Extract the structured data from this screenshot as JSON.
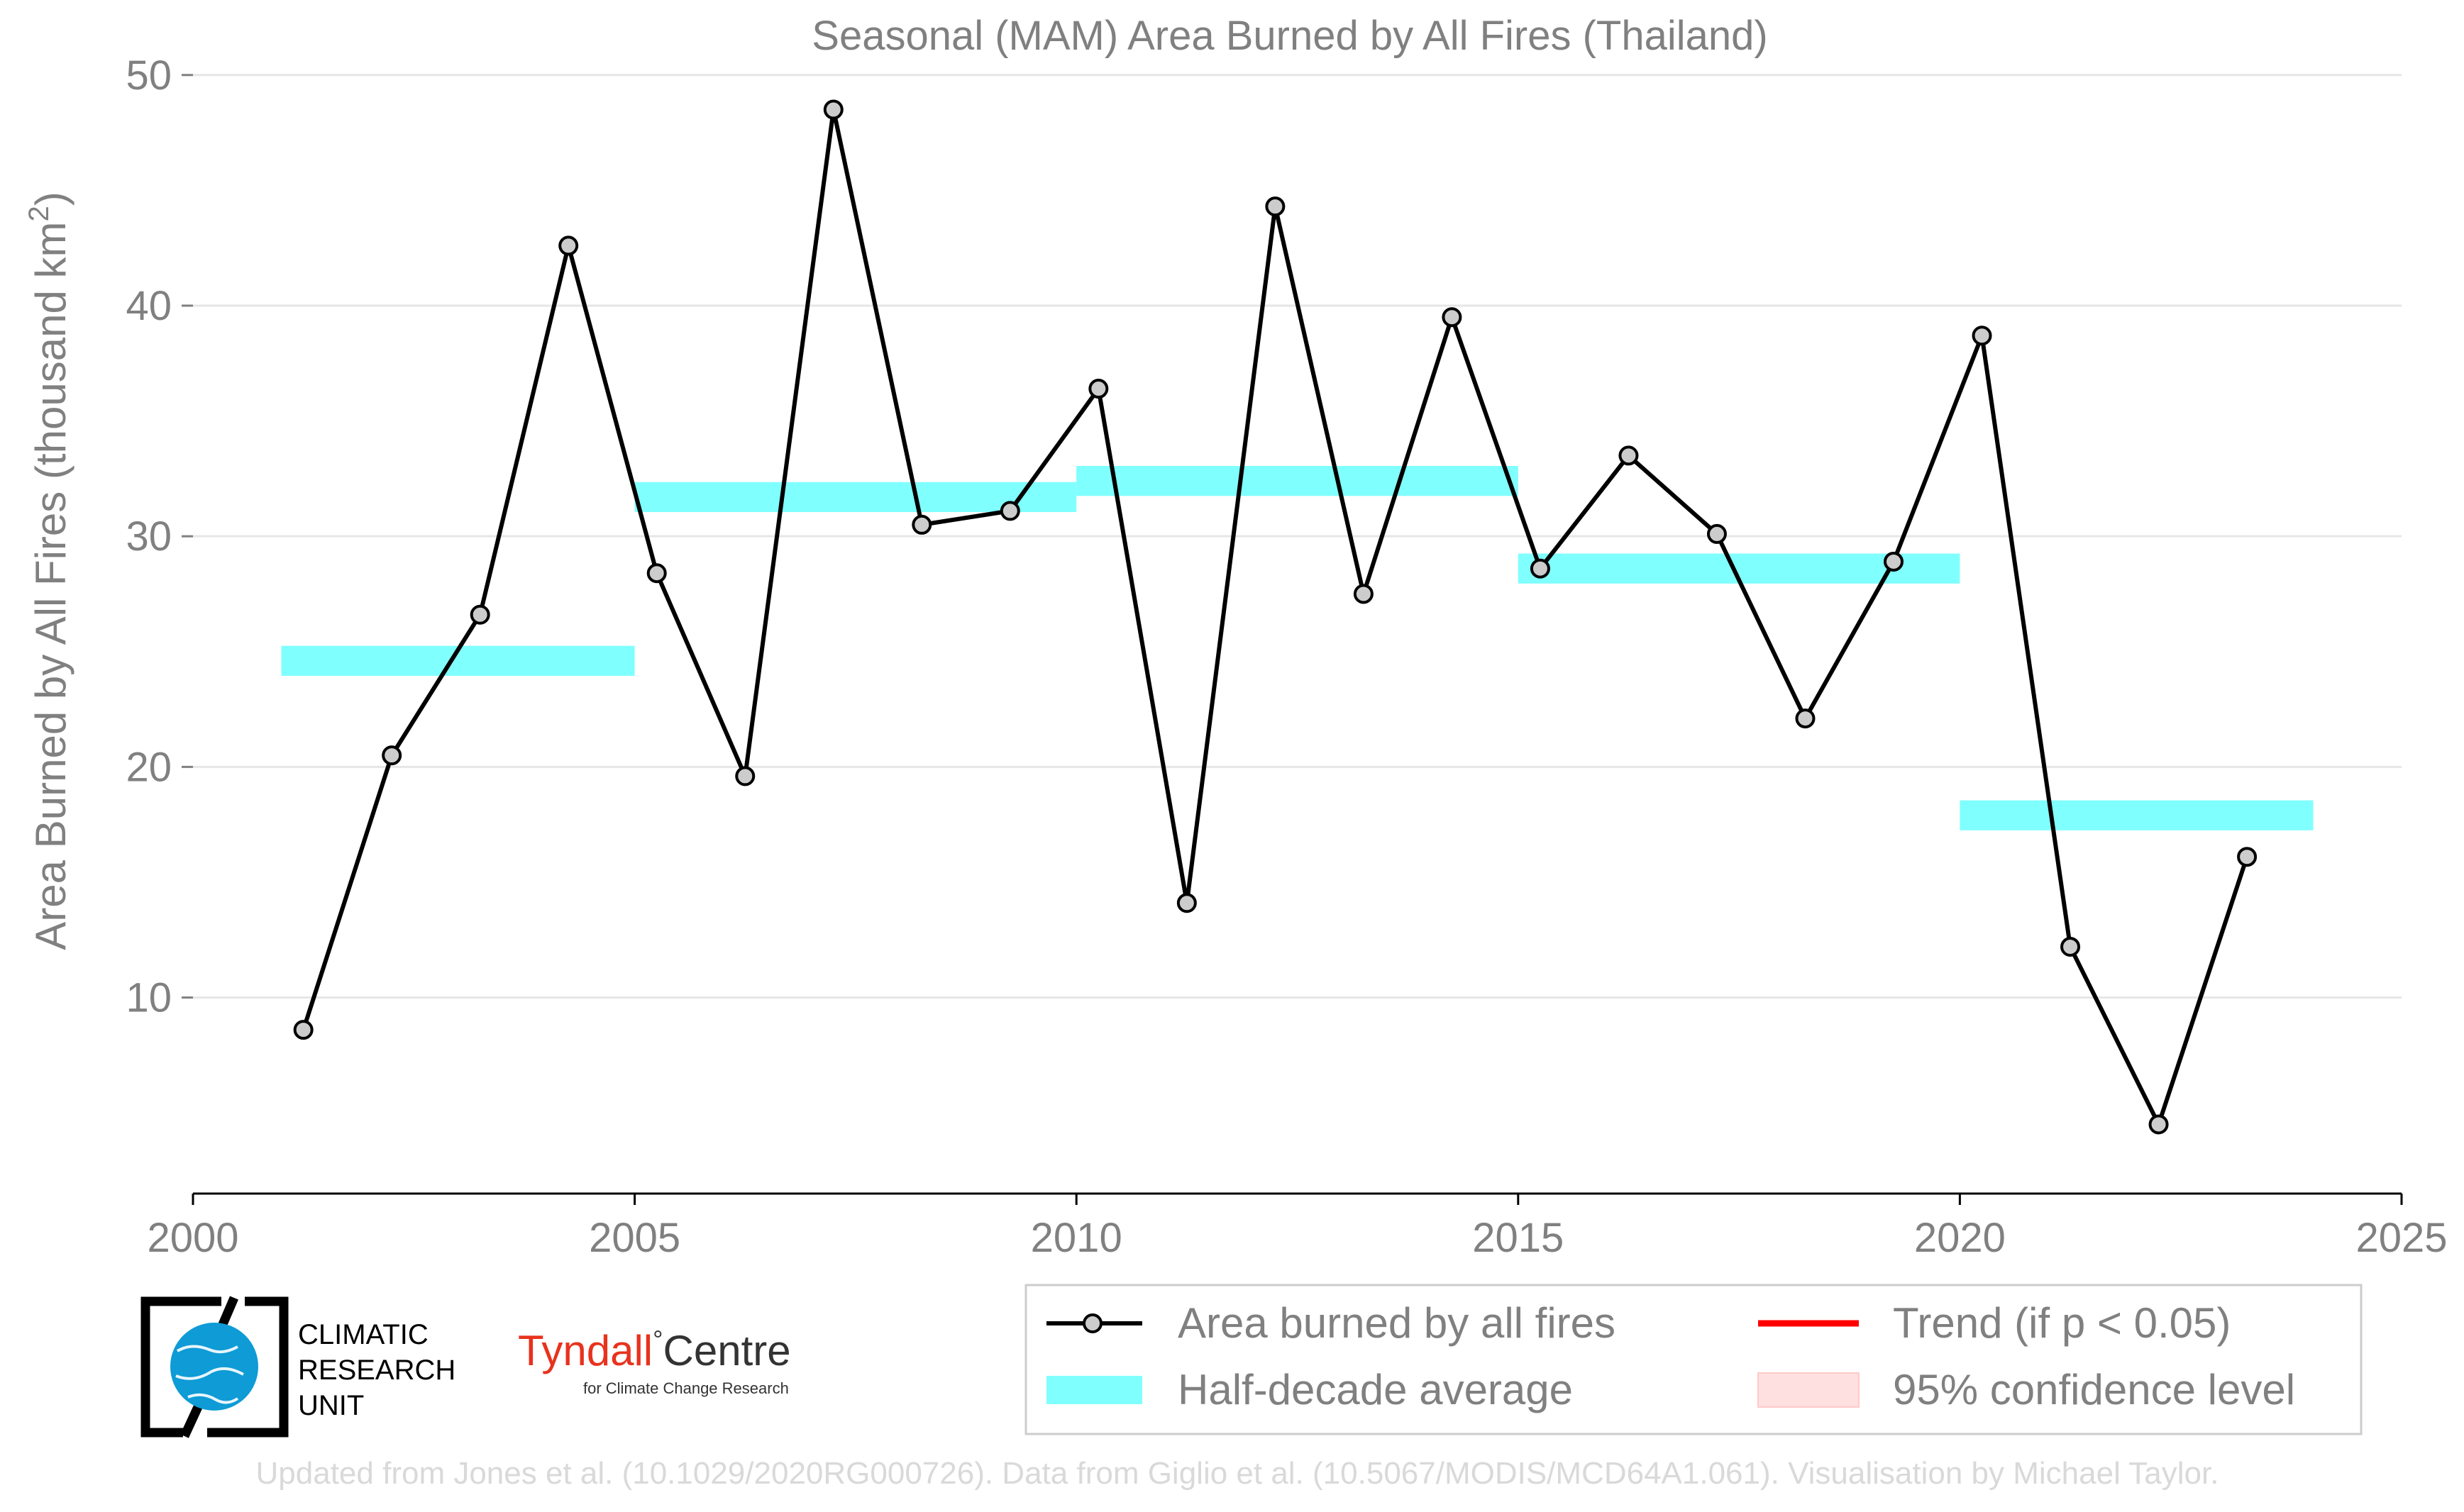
{
  "chart_data": {
    "type": "line",
    "title": "Seasonal (MAM) Area Burned by All Fires (Thailand)",
    "ylabel": "Area Burned by All Fires (thousand km",
    "ylabel_sup": "2",
    "ylabel_close": ")",
    "xlabel": "",
    "xlim": [
      2000,
      2025
    ],
    "ylim": [
      1.5,
      51.5
    ],
    "xticks": [
      2000,
      2005,
      2010,
      2015,
      2020,
      2025
    ],
    "yticks": [
      10,
      20,
      30,
      40,
      50
    ],
    "grid": "horizontal",
    "series": [
      {
        "name": "Area burned by all fires",
        "color": "#000000",
        "marker_fill": "#cccccc",
        "x": [
          2001.25,
          2002.25,
          2003.25,
          2004.25,
          2005.25,
          2006.25,
          2007.25,
          2008.25,
          2009.25,
          2010.25,
          2011.25,
          2012.25,
          2013.25,
          2014.25,
          2015.25,
          2016.25,
          2017.25,
          2018.25,
          2019.25,
          2020.25,
          2021.25,
          2022.25,
          2023.25
        ],
        "values": [
          8.6,
          20.5,
          26.6,
          42.6,
          28.4,
          19.6,
          48.5,
          30.5,
          31.1,
          36.4,
          14.1,
          44.3,
          27.5,
          39.5,
          28.6,
          33.5,
          30.1,
          22.1,
          28.9,
          38.7,
          12.2,
          4.5,
          16.1
        ]
      }
    ],
    "half_decade_average": {
      "name": "Half-decade average",
      "color": "#80ffff",
      "band_half_height": 0.65,
      "segments": [
        {
          "x0": 2001,
          "x1": 2005,
          "y": 24.6
        },
        {
          "x0": 2005,
          "x1": 2010,
          "y": 31.7
        },
        {
          "x0": 2010,
          "x1": 2015,
          "y": 32.4
        },
        {
          "x0": 2015,
          "x1": 2020,
          "y": 28.6
        },
        {
          "x0": 2020,
          "x1": 2024,
          "y": 17.9
        }
      ]
    },
    "legend": {
      "placement": "bottom-right",
      "entries": [
        {
          "label": "Area burned by all fires",
          "kind": "line-marker",
          "color": "#000000"
        },
        {
          "label": "Trend (if p < 0.05)",
          "kind": "line",
          "color": "#ff0000"
        },
        {
          "label": "Half-decade average",
          "kind": "band",
          "color": "#80ffff"
        },
        {
          "label": "95% confidence level",
          "kind": "band",
          "color": "#ffe0e0"
        }
      ]
    },
    "colors": {
      "text": "#808080",
      "grid": "#e6e6e6",
      "axis": "#000000",
      "footer": "#d9d9d9",
      "logo_globe": "#0e9bd6",
      "tyndall_red": "#e8321e"
    }
  },
  "logos": {
    "cru": [
      "CLIMATIC",
      "RESEARCH",
      "UNIT"
    ],
    "tyndall": {
      "name": "Tyndall",
      "suffix": "Centre",
      "tagline": "for Climate Change Research"
    }
  },
  "footer": "Updated from Jones et al. (10.1029/2020RG000726). Data from Giglio et al. (10.5067/MODIS/MCD64A1.061). Visualisation by Michael Taylor."
}
